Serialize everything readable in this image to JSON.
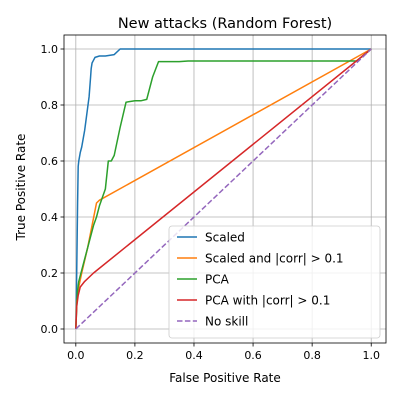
{
  "chart_data": {
    "type": "line",
    "title": "New attacks (Random Forest)",
    "xlabel": "False Positive Rate",
    "ylabel": "True Positive Rate",
    "xlim": [
      -0.04,
      1.05
    ],
    "ylim": [
      -0.05,
      1.05
    ],
    "grid": true,
    "legend_position": "lower-right",
    "xticks": [
      0.0,
      0.2,
      0.4,
      0.6,
      0.8,
      1.0
    ],
    "xtick_labels": [
      "0.0",
      "0.2",
      "0.4",
      "0.6",
      "0.8",
      "1.0"
    ],
    "yticks": [
      0.0,
      0.2,
      0.4,
      0.6,
      0.8,
      1.0
    ],
    "ytick_labels": [
      "0.0",
      "0.2",
      "0.4",
      "0.6",
      "0.8",
      "1.0"
    ],
    "series": [
      {
        "name": "Scaled",
        "color": "#1f77b4",
        "dash": "solid",
        "x": [
          0.0,
          0.003,
          0.006,
          0.008,
          0.01,
          0.015,
          0.02,
          0.025,
          0.03,
          0.035,
          0.04,
          0.045,
          0.05,
          0.052,
          0.055,
          0.06,
          0.065,
          0.08,
          0.1,
          0.13,
          0.15,
          0.2,
          0.4,
          0.6,
          0.8,
          1.0
        ],
        "y": [
          0.0,
          0.2,
          0.45,
          0.58,
          0.6,
          0.63,
          0.65,
          0.68,
          0.71,
          0.75,
          0.79,
          0.83,
          0.9,
          0.93,
          0.95,
          0.96,
          0.97,
          0.975,
          0.975,
          0.98,
          1.0,
          1.0,
          1.0,
          1.0,
          1.0,
          1.0
        ]
      },
      {
        "name": "Scaled and |corr| > 0.1",
        "color": "#ff7f0e",
        "dash": "solid",
        "x": [
          0.0,
          0.003,
          0.01,
          0.02,
          0.04,
          0.07,
          0.08,
          1.0
        ],
        "y": [
          0.0,
          0.1,
          0.15,
          0.2,
          0.29,
          0.45,
          0.46,
          1.0
        ]
      },
      {
        "name": "PCA",
        "color": "#2ca02c",
        "dash": "solid",
        "x": [
          0.0,
          0.005,
          0.01,
          0.02,
          0.03,
          0.04,
          0.05,
          0.06,
          0.07,
          0.08,
          0.09,
          0.1,
          0.11,
          0.12,
          0.13,
          0.14,
          0.15,
          0.17,
          0.2,
          0.22,
          0.24,
          0.26,
          0.28,
          0.35,
          0.38,
          0.6,
          0.8,
          0.95,
          1.0
        ],
        "y": [
          0.0,
          0.13,
          0.17,
          0.21,
          0.25,
          0.29,
          0.33,
          0.37,
          0.4,
          0.44,
          0.47,
          0.5,
          0.6,
          0.6,
          0.62,
          0.67,
          0.72,
          0.81,
          0.815,
          0.815,
          0.82,
          0.9,
          0.955,
          0.955,
          0.957,
          0.957,
          0.957,
          0.957,
          1.0
        ]
      },
      {
        "name": "PCA with |corr| > 0.1",
        "color": "#d62728",
        "dash": "solid",
        "x": [
          0.0,
          0.003,
          0.008,
          0.015,
          0.03,
          0.06,
          1.0
        ],
        "y": [
          0.0,
          0.08,
          0.12,
          0.15,
          0.17,
          0.2,
          1.0
        ]
      },
      {
        "name": "No skill",
        "color": "#9467bd",
        "dash": "dashed",
        "x": [
          0.0,
          1.0
        ],
        "y": [
          0.0,
          1.0
        ]
      }
    ]
  }
}
